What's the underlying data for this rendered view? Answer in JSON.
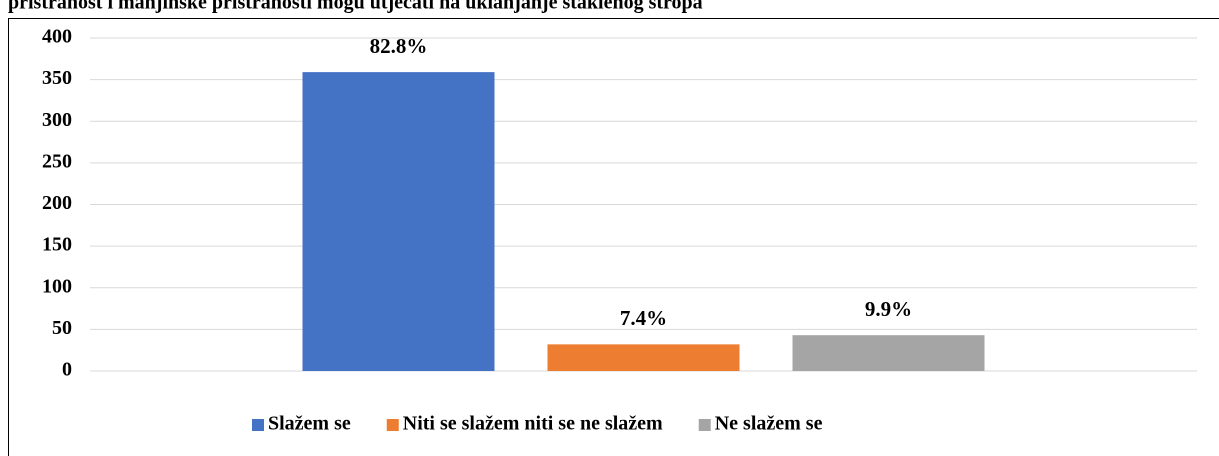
{
  "chart_data": {
    "type": "bar",
    "title": "pristranost i manjinske pristranosti mogu utjecati na uklanjanje staklenog stropa",
    "categories": [
      null
    ],
    "series": [
      {
        "name": "Slažem se",
        "color": "#4472c4",
        "values": [
          359
        ],
        "value_labels": [
          "82.8%"
        ]
      },
      {
        "name": "Niti se slažem niti se ne slažem",
        "color": "#ed7d31",
        "values": [
          32
        ],
        "value_labels": [
          "7.4%"
        ]
      },
      {
        "name": "Ne slažem se",
        "color": "#a5a5a5",
        "values": [
          43
        ],
        "value_labels": [
          "9.9%"
        ]
      }
    ],
    "ylim": [
      0,
      400
    ],
    "yticks": [
      0,
      50,
      100,
      150,
      200,
      250,
      300,
      350,
      400
    ],
    "grid": true,
    "legend": "bottom"
  }
}
